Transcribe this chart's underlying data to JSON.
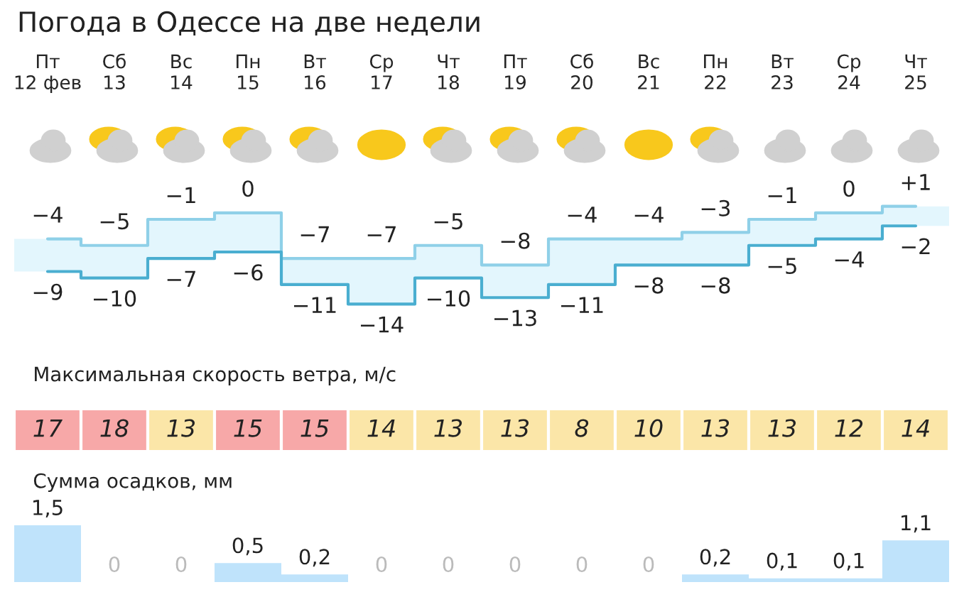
{
  "chart_data": [
    {
      "type": "step",
      "title": "Погода в Одессе на две недели",
      "categories": [
        "Пт\n12 фев",
        "Сб\n13",
        "Вс\n14",
        "Пн\n15",
        "Вт\n16",
        "Ср\n17",
        "Чт\n18",
        "Пт\n19",
        "Сб\n20",
        "Вс\n21",
        "Пн\n22",
        "Вт\n23",
        "Ср\n24",
        "Чт\n25"
      ],
      "tick_labels": "x",
      "series": [
        {
          "color": "#8fd0e8",
          "values": [
            -4,
            -5,
            -1,
            0,
            -7,
            -7,
            -5,
            -8,
            -4,
            -4,
            -3,
            -1,
            0,
            1
          ],
          "value_labels": [
            "−4",
            "−5",
            "−1",
            "0",
            "−7",
            "−7",
            "−5",
            "−8",
            "−4",
            "−4",
            "−3",
            "−1",
            "0",
            "+1"
          ]
        },
        {
          "color": "#4aaed0",
          "values": [
            -9,
            -10,
            -7,
            -6,
            -11,
            -14,
            -10,
            -13,
            -11,
            -8,
            -8,
            -5,
            -4,
            -2
          ],
          "value_labels": [
            "−9",
            "−10",
            "−7",
            "−6",
            "−11",
            "−14",
            "−10",
            "−13",
            "−11",
            "−8",
            "−8",
            "−5",
            "−4",
            "−2"
          ]
        }
      ]
    },
    {
      "type": "heatmap",
      "title": "Максимальная скорость ветра, м/с",
      "categories": [
        null,
        null,
        null,
        null,
        null,
        null,
        null,
        null,
        null,
        null,
        null,
        null,
        null,
        null
      ],
      "y_categories": [
        null
      ],
      "data_labels": true,
      "cells": [
        [
          17,
          18,
          13,
          15,
          15,
          14,
          13,
          13,
          8,
          10,
          13,
          13,
          12,
          14
        ]
      ],
      "colors": [
        "#f7a8a8",
        "#f7a8a8",
        "#fbe6a8",
        "#f7a8a8",
        "#f7a8a8",
        "#fbe6a8",
        "#fbe6a8",
        "#fbe6a8",
        "#fbe6a8",
        "#fbe6a8",
        "#fbe6a8",
        "#fbe6a8",
        "#fbe6a8",
        "#fbe6a8"
      ]
    },
    {
      "type": "bar",
      "title": "Сумма осадков, мм",
      "categories": [
        null,
        null,
        null,
        null,
        null,
        null,
        null,
        null,
        null,
        null,
        null,
        null,
        null,
        null
      ],
      "tick_labels": false,
      "color": "#bfe3fb",
      "values": [
        1.5,
        0,
        0,
        0.5,
        0.2,
        0,
        0,
        0,
        0,
        0,
        0.2,
        0.1,
        0.1,
        1.1
      ],
      "value_labels": [
        "1,5",
        "0",
        "0",
        "0,5",
        "0,2",
        "0",
        "0",
        "0",
        "0",
        "0",
        "0,2",
        "0,1",
        "0,1",
        "1,1"
      ]
    }
  ]
}
